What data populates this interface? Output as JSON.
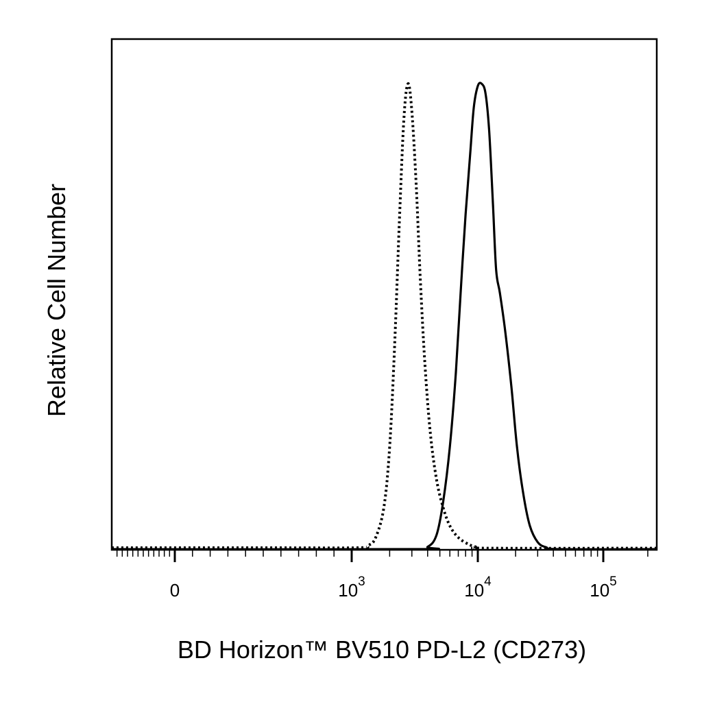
{
  "chart_data": {
    "type": "histogram",
    "title": "",
    "xlabel": "BD Horizon™ BV510 PD-L2 (CD273)",
    "ylabel": "Relative Cell Number",
    "x_scale": "biexponential",
    "x_ticks": [
      {
        "value": 0,
        "base": "0",
        "exp": ""
      },
      {
        "value": 1000,
        "base": "10",
        "exp": "3"
      },
      {
        "value": 10000,
        "base": "10",
        "exp": "4"
      },
      {
        "value": 100000,
        "base": "10",
        "exp": "5"
      }
    ],
    "xlim": [
      -1200,
      230000
    ],
    "ylim": [
      0,
      100
    ],
    "grid": false,
    "legend": "none",
    "series": [
      {
        "style": "dotted",
        "color": "#000000",
        "points": [
          [
            -1200,
            0.3
          ],
          [
            500,
            0.3
          ],
          [
            1100,
            0.3
          ],
          [
            1350,
            0.8
          ],
          [
            1550,
            2.5
          ],
          [
            1800,
            9
          ],
          [
            2000,
            22
          ],
          [
            2200,
            45
          ],
          [
            2400,
            72
          ],
          [
            2600,
            93
          ],
          [
            2800,
            100
          ],
          [
            3000,
            94
          ],
          [
            3250,
            78
          ],
          [
            3500,
            58
          ],
          [
            3800,
            40
          ],
          [
            4200,
            25
          ],
          [
            4700,
            15
          ],
          [
            5300,
            9
          ],
          [
            6000,
            5
          ],
          [
            7000,
            2.5
          ],
          [
            8500,
            1
          ],
          [
            10000,
            0.4
          ],
          [
            12000,
            0.2
          ],
          [
            230000,
            0.2
          ]
        ]
      },
      {
        "style": "solid",
        "color": "#000000",
        "points": [
          [
            -1200,
            0
          ],
          [
            3000,
            0
          ],
          [
            4000,
            0.5
          ],
          [
            4700,
            3
          ],
          [
            5300,
            10
          ],
          [
            6000,
            22
          ],
          [
            6700,
            38
          ],
          [
            7300,
            55
          ],
          [
            8000,
            72
          ],
          [
            8700,
            85
          ],
          [
            9300,
            95
          ],
          [
            10000,
            99.5
          ],
          [
            10700,
            100
          ],
          [
            11500,
            98
          ],
          [
            12300,
            90
          ],
          [
            13200,
            74
          ],
          [
            14000,
            60
          ],
          [
            15000,
            55
          ],
          [
            16500,
            47
          ],
          [
            18500,
            35
          ],
          [
            20500,
            22
          ],
          [
            23000,
            12
          ],
          [
            26000,
            5
          ],
          [
            30000,
            1.5
          ],
          [
            35000,
            0.4
          ],
          [
            45000,
            0
          ],
          [
            230000,
            0
          ]
        ]
      }
    ]
  },
  "colors": {
    "axis": "#000000",
    "background": "#ffffff",
    "line": "#000000"
  }
}
